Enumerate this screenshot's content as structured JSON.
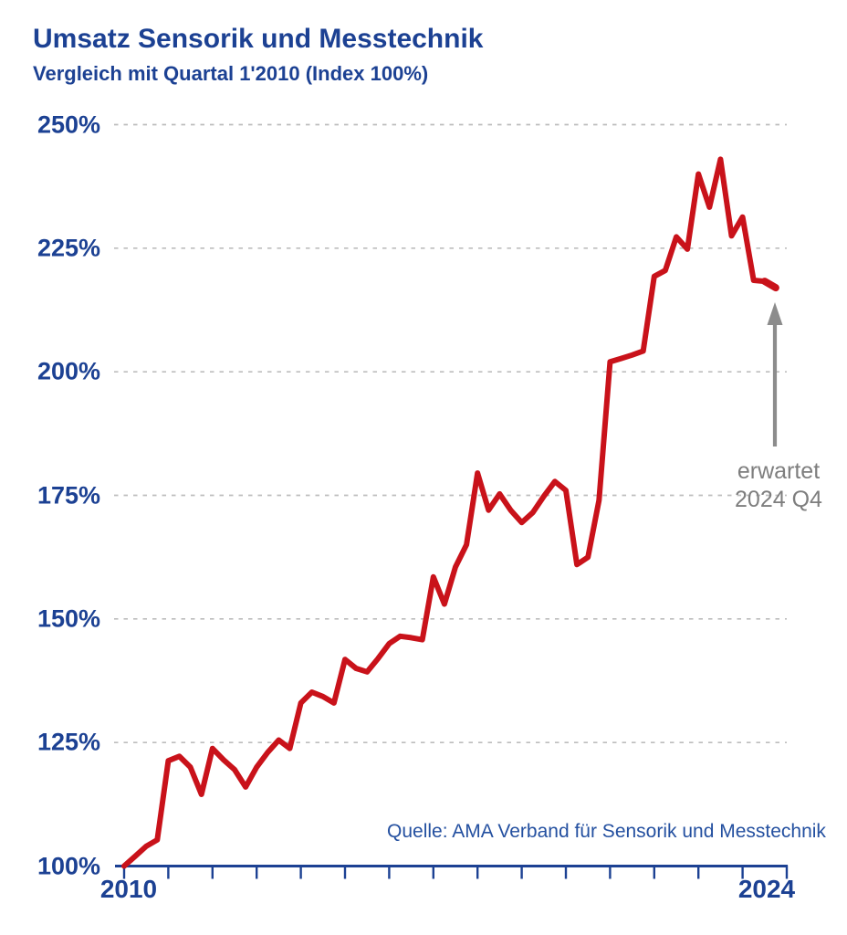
{
  "chart_data": {
    "type": "line",
    "title": "Umsatz Sensorik und Messtechnik",
    "subtitle": "Vergleich mit Quartal 1'2010 (Index 100%)",
    "source": "Quelle: AMA Verband für Sensorik und Messtechnik",
    "annotation": {
      "line1": "erwartet",
      "line2": "2024 Q4"
    },
    "x_start": "2010 Q1",
    "x_end": "2024 Q4",
    "points_per_year": 4,
    "x_first_year": 2010,
    "x_last_year": 2024,
    "xtick_labels": {
      "first": "2010",
      "last": "2024"
    },
    "ylim": [
      100,
      250
    ],
    "ytick_values": [
      100,
      125,
      150,
      175,
      200,
      225,
      250
    ],
    "yticks": [
      "100%",
      "125%",
      "150%",
      "175%",
      "200%",
      "225%",
      "250%"
    ],
    "grid": "horizontal-dashed",
    "legend": "none",
    "series": [
      {
        "name": "Umsatz Index (Quartal 1'2010 = 100%)",
        "values": [
          100,
          102,
          104,
          105.3,
          121.3,
          122.2,
          120,
          114.5,
          123.8,
          121.5,
          119.5,
          116,
          120,
          123,
          125.5,
          123.8,
          133,
          135.2,
          134.3,
          133,
          141.8,
          140,
          139.3,
          142,
          145,
          146.5,
          146.2,
          145.8,
          158.5,
          153,
          160.5,
          165,
          179.5,
          172,
          175.3,
          172,
          169.5,
          171.5,
          174.8,
          177.8,
          176,
          161,
          162.5,
          174,
          202,
          202.7,
          203.4,
          204.2,
          219.3,
          220.5,
          227.3,
          224.8,
          240,
          233.3,
          243,
          227.5,
          231.3,
          218.5,
          218.3,
          217
        ]
      }
    ],
    "colors": {
      "line": "#c9121a",
      "axis_and_labels": "#1c4193",
      "grid": "#bdbdbd",
      "annotation_gray": "#7e7e7e",
      "arrow_gray": "#8c8c8c",
      "source_blue": "#2450a0",
      "background": "#ffffff"
    }
  }
}
